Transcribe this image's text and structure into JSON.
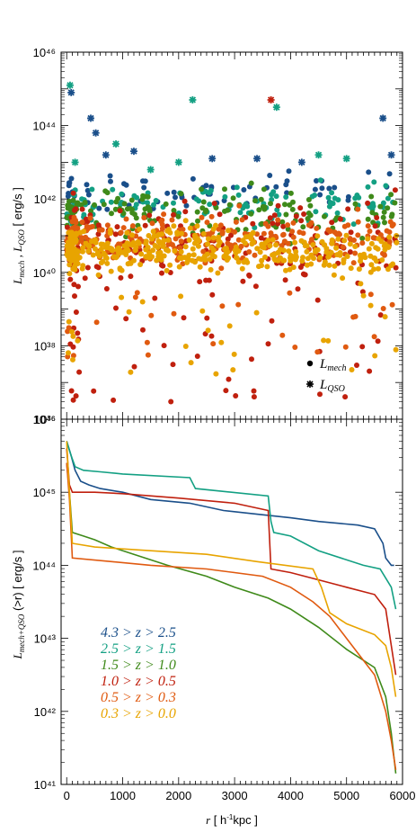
{
  "chart_data": [
    {
      "type": "scatter",
      "yscale": "log",
      "ylim_exp": [
        36,
        46
      ],
      "y_tick_labels": [
        "10⁴⁶",
        "10⁴⁴",
        "10⁴²",
        "10⁴⁰",
        "10³⁸",
        "10³⁶"
      ],
      "ylabel_parts": [
        "L",
        "mech",
        " , L",
        "QSO",
        "  [ erg/s ]"
      ],
      "symbol_legend": [
        {
          "marker": "circle",
          "label_main": "L",
          "label_sub": "mech"
        },
        {
          "marker": "asterisk",
          "label_main": "L",
          "label_sub": "QSO"
        }
      ],
      "clusters_circle": [
        {
          "color": "#e8a400",
          "x_range": [
            0,
            5900
          ],
          "y_center": 40.6,
          "y_spread": 0.55,
          "count": 420
        },
        {
          "color": "#e05a10",
          "x_range": [
            0,
            5900
          ],
          "y_center": 40.9,
          "y_spread": 0.6,
          "count": 300
        },
        {
          "color": "#c0200e",
          "x_range": [
            0,
            5900
          ],
          "y_center": 40.7,
          "y_spread": 1.2,
          "count": 220
        },
        {
          "color": "#3f8a1a",
          "x_range": [
            0,
            5900
          ],
          "y_center": 41.6,
          "y_spread": 0.6,
          "count": 160
        },
        {
          "color": "#13a083",
          "x_range": [
            0,
            5900
          ],
          "y_center": 41.9,
          "y_spread": 0.5,
          "count": 120
        },
        {
          "color": "#1a4f8a",
          "x_range": [
            0,
            5900
          ],
          "y_center": 42.2,
          "y_spread": 0.5,
          "count": 70
        }
      ],
      "qso_points": [
        {
          "x": 80,
          "y": 44.9,
          "color": "#1a4f8a"
        },
        {
          "x": 60,
          "y": 45.1,
          "color": "#13a083"
        },
        {
          "x": 430,
          "y": 44.2,
          "color": "#1a4f8a"
        },
        {
          "x": 520,
          "y": 43.8,
          "color": "#1a4f8a"
        },
        {
          "x": 700,
          "y": 43.2,
          "color": "#1a4f8a"
        },
        {
          "x": 880,
          "y": 43.5,
          "color": "#13a083"
        },
        {
          "x": 1200,
          "y": 43.3,
          "color": "#1a4f8a"
        },
        {
          "x": 2000,
          "y": 43.0,
          "color": "#13a083"
        },
        {
          "x": 2250,
          "y": 44.7,
          "color": "#13a083"
        },
        {
          "x": 2600,
          "y": 43.1,
          "color": "#1a4f8a"
        },
        {
          "x": 3650,
          "y": 44.7,
          "color": "#c0200e"
        },
        {
          "x": 3750,
          "y": 44.5,
          "color": "#13a083"
        },
        {
          "x": 3400,
          "y": 43.1,
          "color": "#1a4f8a"
        },
        {
          "x": 4200,
          "y": 43.0,
          "color": "#1a4f8a"
        },
        {
          "x": 4500,
          "y": 43.2,
          "color": "#13a083"
        },
        {
          "x": 5000,
          "y": 43.1,
          "color": "#13a083"
        },
        {
          "x": 5650,
          "y": 44.2,
          "color": "#1a4f8a"
        },
        {
          "x": 5800,
          "y": 43.2,
          "color": "#1a4f8a"
        },
        {
          "x": 150,
          "y": 43.0,
          "color": "#13a083"
        },
        {
          "x": 1500,
          "y": 42.8,
          "color": "#13a083"
        }
      ]
    },
    {
      "type": "line",
      "yscale": "log",
      "ylim_exp": [
        41,
        46
      ],
      "xlim": [
        -100,
        6000
      ],
      "x_tick_labels": [
        "0",
        "1000",
        "2000",
        "3000",
        "4000",
        "5000",
        "6000"
      ],
      "y_tick_labels": [
        "10⁴⁶",
        "10⁴⁵",
        "10⁴⁴",
        "10⁴³",
        "10⁴²",
        "10⁴¹"
      ],
      "ylabel_parts": [
        "L",
        "mech+QSO",
        " (>r)  [ erg/s ]"
      ],
      "xlabel_parts": [
        "r",
        "  [ h",
        "-1",
        "kpc ]"
      ],
      "series": [
        {
          "name": "4.3 > z > 2.5",
          "color": "#1a4f8a",
          "x": [
            0,
            80,
            150,
            250,
            400,
            600,
            1000,
            1500,
            2200,
            2800,
            3400,
            4000,
            4500,
            5200,
            5500,
            5650,
            5700,
            5800,
            5850
          ],
          "y": [
            45.7,
            45.5,
            45.3,
            45.15,
            45.1,
            45.05,
            45.0,
            44.9,
            44.85,
            44.75,
            44.7,
            44.65,
            44.6,
            44.55,
            44.5,
            44.3,
            44.1,
            44.0,
            44.0
          ]
        },
        {
          "name": "2.5 > z > 1.5",
          "color": "#13a083",
          "x": [
            0,
            80,
            150,
            300,
            600,
            1000,
            2200,
            2300,
            3600,
            3650,
            3700,
            4000,
            4500,
            5300,
            5600,
            5800,
            5880
          ],
          "y": [
            45.7,
            45.5,
            45.35,
            45.3,
            45.28,
            45.25,
            45.2,
            45.05,
            44.95,
            44.6,
            44.45,
            44.4,
            44.2,
            44.0,
            43.95,
            43.7,
            43.4
          ]
        },
        {
          "name": "1.5 > z > 1.0",
          "color": "#3f8a1a",
          "x": [
            0,
            50,
            100,
            300,
            500,
            800,
            1200,
            1800,
            2500,
            3000,
            3600,
            4000,
            4500,
            5000,
            5500,
            5700,
            5800,
            5880
          ],
          "y": [
            45.4,
            45.0,
            44.45,
            44.4,
            44.35,
            44.25,
            44.15,
            44.0,
            43.85,
            43.7,
            43.55,
            43.4,
            43.15,
            42.85,
            42.6,
            42.2,
            41.7,
            41.15
          ]
        },
        {
          "name": "1.0 > z > 0.5",
          "color": "#c0200e",
          "x": [
            0,
            50,
            100,
            500,
            1000,
            2000,
            3000,
            3600,
            3650,
            4000,
            4500,
            5000,
            5500,
            5700,
            5800,
            5880
          ],
          "y": [
            45.6,
            45.1,
            45.0,
            45.0,
            44.98,
            44.92,
            44.85,
            44.75,
            43.95,
            43.9,
            43.8,
            43.7,
            43.6,
            43.4,
            42.9,
            42.5
          ]
        },
        {
          "name": "0.5 > z > 0.3",
          "color": "#e05a10",
          "x": [
            0,
            50,
            100,
            800,
            1500,
            2500,
            3500,
            4000,
            4400,
            4700,
            5000,
            5500,
            5700,
            5800,
            5880
          ],
          "y": [
            45.4,
            44.9,
            44.1,
            44.05,
            44.0,
            43.95,
            43.85,
            43.7,
            43.5,
            43.3,
            43.0,
            42.5,
            42.0,
            41.6,
            41.2
          ]
        },
        {
          "name": "0.3 > z > 0.0",
          "color": "#e8a400",
          "x": [
            0,
            50,
            100,
            500,
            1500,
            2500,
            3400,
            4400,
            4550,
            4700,
            5000,
            5500,
            5700,
            5800,
            5880
          ],
          "y": [
            45.7,
            45.0,
            44.3,
            44.25,
            44.2,
            44.15,
            44.05,
            43.95,
            43.7,
            43.35,
            43.2,
            43.05,
            42.9,
            42.6,
            42.2
          ]
        }
      ]
    }
  ]
}
